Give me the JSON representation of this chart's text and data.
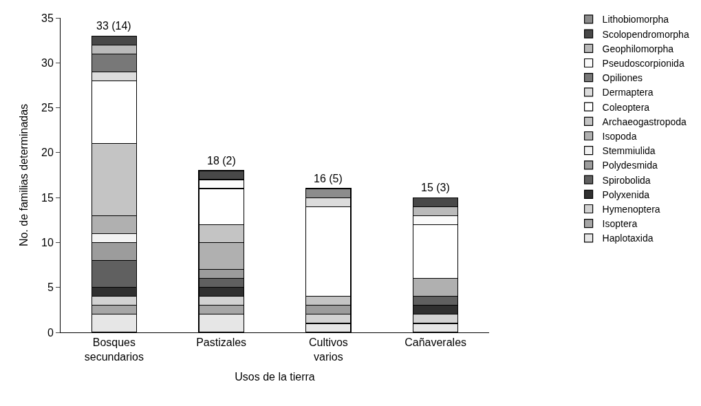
{
  "chart_data": {
    "type": "bar",
    "stacked": true,
    "xlabel": "Usos de la tierra",
    "ylabel": "No. de familias determinadas",
    "categories": [
      "Bosques secundarios",
      "Pastizales",
      "Cultivos varios",
      "Cañaverales"
    ],
    "ylim": [
      0,
      35
    ],
    "yticks": [
      0,
      5,
      10,
      15,
      20,
      25,
      30,
      35
    ],
    "grid": false,
    "legend": "right",
    "totals": [
      "33 (14)",
      "18 (2)",
      "16 (5)",
      "15 (3)"
    ],
    "series": [
      {
        "name": "Haplotaxida",
        "color": "#e6e6e6",
        "values": [
          2,
          2,
          1,
          1
        ]
      },
      {
        "name": "Isoptera",
        "color": "#a6a6a6",
        "values": [
          1,
          1,
          0,
          0
        ]
      },
      {
        "name": "Hymenoptera",
        "color": "#d2d2d2",
        "values": [
          1,
          1,
          1,
          1
        ]
      },
      {
        "name": "Polyxenida",
        "color": "#303030",
        "values": [
          1,
          1,
          0,
          1
        ]
      },
      {
        "name": "Spirobolida",
        "color": "#606060",
        "values": [
          3,
          1,
          0,
          1
        ]
      },
      {
        "name": "Polydesmida",
        "color": "#9c9c9c",
        "values": [
          2,
          1,
          1,
          0
        ]
      },
      {
        "name": "Stemmiulida",
        "color": "#f2f2f2",
        "values": [
          1,
          0,
          0,
          0
        ]
      },
      {
        "name": "Isopoda",
        "color": "#b0b0b0",
        "values": [
          2,
          3,
          0,
          2
        ]
      },
      {
        "name": "Archaeogastropoda",
        "color": "#c4c4c4",
        "values": [
          8,
          2,
          1,
          0
        ]
      },
      {
        "name": "Coleoptera",
        "color": "#ffffff",
        "values": [
          7,
          4,
          10,
          6
        ]
      },
      {
        "name": "Dermaptera",
        "color": "#dcdcdc",
        "values": [
          1,
          0,
          1,
          0
        ]
      },
      {
        "name": "Opiliones",
        "color": "#787878",
        "values": [
          2,
          0,
          0,
          0
        ]
      },
      {
        "name": "Pseudoscorpionida",
        "color": "#fafafa",
        "values": [
          0,
          1,
          0,
          1
        ]
      },
      {
        "name": "Geophilomorpha",
        "color": "#bababa",
        "values": [
          1,
          0,
          0,
          1
        ]
      },
      {
        "name": "Scolopendromorpha",
        "color": "#484848",
        "values": [
          1,
          1,
          0,
          1
        ]
      },
      {
        "name": "Lithobiomorpha",
        "color": "#8c8c8c",
        "values": [
          0,
          0,
          1,
          0
        ]
      }
    ]
  }
}
